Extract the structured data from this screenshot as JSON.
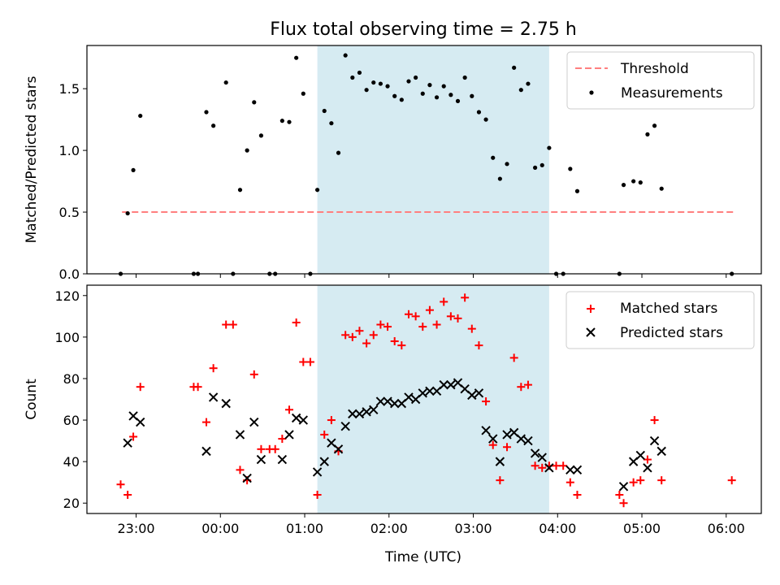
{
  "figure": {
    "title": "Flux total observing time = 2.75 h",
    "xlabel": "Time (UTC)",
    "x_ticks": [
      "23:00",
      "00:00",
      "01:00",
      "02:00",
      "03:00",
      "04:00",
      "05:00",
      "06:00"
    ],
    "shaded_interval": [
      "01:09",
      "03:54"
    ],
    "shade_color": "#add8e6"
  },
  "chart_data": [
    {
      "type": "scatter",
      "ylabel": "Matched/Predicted stars",
      "ylim": [
        0,
        1.85
      ],
      "yticks": [
        "0.0",
        "0.5",
        "1.0",
        "1.5"
      ],
      "ytick_values": [
        0,
        0.5,
        1.0,
        1.5
      ],
      "legend_position": "top-right",
      "threshold": {
        "name": "Threshold",
        "value": 0.5,
        "x_range": [
          "22:50",
          "06:05"
        ],
        "color": "#ff7f7f"
      },
      "series": [
        {
          "name": "Measurements",
          "color": "#000000",
          "points": [
            [
              "22:49",
              0.0
            ],
            [
              "22:54",
              0.49
            ],
            [
              "22:58",
              0.84
            ],
            [
              "23:03",
              1.28
            ],
            [
              "23:41",
              0.0
            ],
            [
              "23:44",
              0.0
            ],
            [
              "23:50",
              1.31
            ],
            [
              "23:55",
              1.2
            ],
            [
              "00:04",
              1.55
            ],
            [
              "00:09",
              0.0
            ],
            [
              "00:14",
              0.68
            ],
            [
              "00:19",
              1.0
            ],
            [
              "00:24",
              1.39
            ],
            [
              "00:29",
              1.12
            ],
            [
              "00:35",
              0.0
            ],
            [
              "00:39",
              0.0
            ],
            [
              "00:44",
              1.24
            ],
            [
              "00:49",
              1.23
            ],
            [
              "00:54",
              1.75
            ],
            [
              "00:59",
              1.46
            ],
            [
              "01:04",
              0.0
            ],
            [
              "01:09",
              0.68
            ],
            [
              "01:14",
              1.32
            ],
            [
              "01:19",
              1.22
            ],
            [
              "01:24",
              0.98
            ],
            [
              "01:29",
              1.77
            ],
            [
              "01:34",
              1.59
            ],
            [
              "01:39",
              1.63
            ],
            [
              "01:44",
              1.49
            ],
            [
              "01:49",
              1.55
            ],
            [
              "01:54",
              1.54
            ],
            [
              "01:59",
              1.52
            ],
            [
              "02:04",
              1.44
            ],
            [
              "02:09",
              1.41
            ],
            [
              "02:14",
              1.56
            ],
            [
              "02:19",
              1.59
            ],
            [
              "02:24",
              1.46
            ],
            [
              "02:29",
              1.53
            ],
            [
              "02:34",
              1.43
            ],
            [
              "02:39",
              1.52
            ],
            [
              "02:44",
              1.45
            ],
            [
              "02:49",
              1.4
            ],
            [
              "02:54",
              1.59
            ],
            [
              "02:59",
              1.44
            ],
            [
              "03:04",
              1.31
            ],
            [
              "03:09",
              1.25
            ],
            [
              "03:14",
              0.94
            ],
            [
              "03:19",
              0.77
            ],
            [
              "03:24",
              0.89
            ],
            [
              "03:29",
              1.67
            ],
            [
              "03:34",
              1.49
            ],
            [
              "03:39",
              1.54
            ],
            [
              "03:44",
              0.86
            ],
            [
              "03:49",
              0.88
            ],
            [
              "03:54",
              1.02
            ],
            [
              "03:59",
              0.0
            ],
            [
              "04:04",
              0.0
            ],
            [
              "04:09",
              0.85
            ],
            [
              "04:14",
              0.67
            ],
            [
              "04:44",
              0.0
            ],
            [
              "04:47",
              0.72
            ],
            [
              "04:54",
              0.75
            ],
            [
              "04:59",
              0.74
            ],
            [
              "05:04",
              1.13
            ],
            [
              "05:09",
              1.2
            ],
            [
              "05:14",
              0.69
            ],
            [
              "06:04",
              0.0
            ]
          ]
        }
      ]
    },
    {
      "type": "scatter",
      "ylabel": "Count",
      "ylim": [
        15,
        125
      ],
      "yticks": [
        "20",
        "40",
        "60",
        "80",
        "100",
        "120"
      ],
      "ytick_values": [
        20,
        40,
        60,
        80,
        100,
        120
      ],
      "legend_position": "top-right",
      "series": [
        {
          "name": "Matched stars",
          "marker": "plus",
          "color": "#ff0000",
          "points": [
            [
              "22:49",
              29
            ],
            [
              "22:54",
              24
            ],
            [
              "22:58",
              52
            ],
            [
              "23:03",
              76
            ],
            [
              "23:41",
              76
            ],
            [
              "23:44",
              76
            ],
            [
              "23:50",
              59
            ],
            [
              "23:55",
              85
            ],
            [
              "00:04",
              106
            ],
            [
              "00:09",
              106
            ],
            [
              "00:14",
              36
            ],
            [
              "00:19",
              31
            ],
            [
              "00:24",
              82
            ],
            [
              "00:29",
              46
            ],
            [
              "00:35",
              46
            ],
            [
              "00:39",
              46
            ],
            [
              "00:44",
              51
            ],
            [
              "00:49",
              65
            ],
            [
              "00:54",
              107
            ],
            [
              "00:59",
              88
            ],
            [
              "01:04",
              88
            ],
            [
              "01:09",
              24
            ],
            [
              "01:14",
              53
            ],
            [
              "01:19",
              60
            ],
            [
              "01:24",
              45
            ],
            [
              "01:29",
              101
            ],
            [
              "01:34",
              100
            ],
            [
              "01:39",
              103
            ],
            [
              "01:44",
              97
            ],
            [
              "01:49",
              101
            ],
            [
              "01:54",
              106
            ],
            [
              "01:59",
              105
            ],
            [
              "02:04",
              98
            ],
            [
              "02:09",
              96
            ],
            [
              "02:14",
              111
            ],
            [
              "02:19",
              110
            ],
            [
              "02:24",
              105
            ],
            [
              "02:29",
              113
            ],
            [
              "02:34",
              106
            ],
            [
              "02:39",
              117
            ],
            [
              "02:44",
              110
            ],
            [
              "02:49",
              109
            ],
            [
              "02:54",
              119
            ],
            [
              "02:59",
              104
            ],
            [
              "03:04",
              96
            ],
            [
              "03:09",
              69
            ],
            [
              "03:14",
              48
            ],
            [
              "03:19",
              31
            ],
            [
              "03:24",
              47
            ],
            [
              "03:29",
              90
            ],
            [
              "03:34",
              76
            ],
            [
              "03:39",
              77
            ],
            [
              "03:44",
              38
            ],
            [
              "03:49",
              37
            ],
            [
              "03:54",
              38
            ],
            [
              "03:59",
              38
            ],
            [
              "04:04",
              38
            ],
            [
              "04:09",
              30
            ],
            [
              "04:14",
              24
            ],
            [
              "04:44",
              24
            ],
            [
              "04:47",
              20
            ],
            [
              "04:54",
              30
            ],
            [
              "04:59",
              31
            ],
            [
              "05:04",
              41
            ],
            [
              "05:09",
              60
            ],
            [
              "05:14",
              31
            ],
            [
              "06:04",
              31
            ]
          ]
        },
        {
          "name": "Predicted stars",
          "marker": "x",
          "color": "#000000",
          "points": [
            [
              "22:54",
              49
            ],
            [
              "22:58",
              62
            ],
            [
              "23:03",
              59
            ],
            [
              "23:50",
              45
            ],
            [
              "23:55",
              71
            ],
            [
              "00:04",
              68
            ],
            [
              "00:14",
              53
            ],
            [
              "00:19",
              32
            ],
            [
              "00:24",
              59
            ],
            [
              "00:29",
              41
            ],
            [
              "00:44",
              41
            ],
            [
              "00:49",
              53
            ],
            [
              "00:54",
              61
            ],
            [
              "00:59",
              60
            ],
            [
              "01:09",
              35
            ],
            [
              "01:14",
              40
            ],
            [
              "01:19",
              49
            ],
            [
              "01:24",
              46
            ],
            [
              "01:29",
              57
            ],
            [
              "01:34",
              63
            ],
            [
              "01:39",
              63
            ],
            [
              "01:44",
              64
            ],
            [
              "01:49",
              65
            ],
            [
              "01:54",
              69
            ],
            [
              "01:59",
              69
            ],
            [
              "02:04",
              68
            ],
            [
              "02:09",
              68
            ],
            [
              "02:14",
              71
            ],
            [
              "02:19",
              70
            ],
            [
              "02:24",
              73
            ],
            [
              "02:29",
              74
            ],
            [
              "02:34",
              74
            ],
            [
              "02:39",
              77
            ],
            [
              "02:44",
              77
            ],
            [
              "02:49",
              78
            ],
            [
              "02:54",
              75
            ],
            [
              "02:59",
              72
            ],
            [
              "03:04",
              73
            ],
            [
              "03:09",
              55
            ],
            [
              "03:14",
              51
            ],
            [
              "03:19",
              40
            ],
            [
              "03:24",
              53
            ],
            [
              "03:29",
              54
            ],
            [
              "03:34",
              51
            ],
            [
              "03:39",
              50
            ],
            [
              "03:44",
              44
            ],
            [
              "03:49",
              42
            ],
            [
              "03:54",
              37
            ],
            [
              "04:09",
              36
            ],
            [
              "04:14",
              36
            ],
            [
              "04:47",
              28
            ],
            [
              "04:54",
              40
            ],
            [
              "04:59",
              43
            ],
            [
              "05:04",
              37
            ],
            [
              "05:09",
              50
            ],
            [
              "05:14",
              45
            ]
          ]
        }
      ]
    }
  ]
}
